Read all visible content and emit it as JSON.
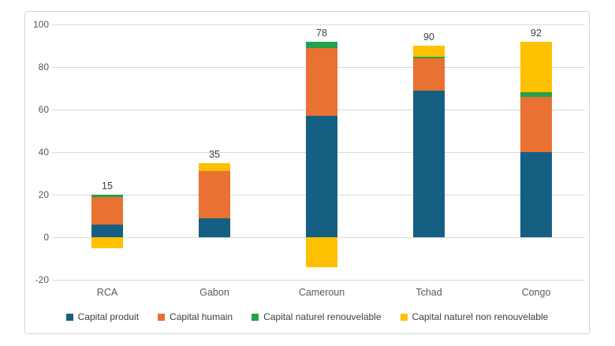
{
  "chart_data": {
    "type": "bar",
    "stacked": true,
    "title": "",
    "xlabel": "",
    "ylabel": "",
    "categories": [
      "RCA",
      "Gabon",
      "Cameroun",
      "Tchad",
      "Congo"
    ],
    "series": [
      {
        "name": "Capital produit",
        "color": "#156082",
        "values": [
          6,
          9,
          57,
          69,
          40
        ]
      },
      {
        "name": "Capital humain",
        "color": "#E97132",
        "values": [
          13,
          22,
          32,
          15,
          26
        ]
      },
      {
        "name": "Capital naturel renouvelable",
        "color": "#23A14B",
        "values": [
          1,
          0,
          3,
          1,
          2
        ]
      },
      {
        "name": "Capital naturel non renouvelable",
        "color": "#FFC000",
        "values": [
          -5,
          4,
          -14,
          5,
          24
        ]
      }
    ],
    "total_labels": [
      "15",
      "35",
      "78",
      "90",
      "92"
    ],
    "ylim": [
      -20,
      100
    ],
    "yticks": [
      100,
      80,
      60,
      40,
      20,
      0,
      -20
    ],
    "grid": true,
    "legend_position": "bottom"
  },
  "styles": {
    "gridline_color": "#d9d9d9",
    "frame_border_color": "#d6d6d6",
    "tick_text_color": "#595959",
    "category_text_color": "#595959",
    "data_label_color": "#404040",
    "background": "#ffffff"
  }
}
